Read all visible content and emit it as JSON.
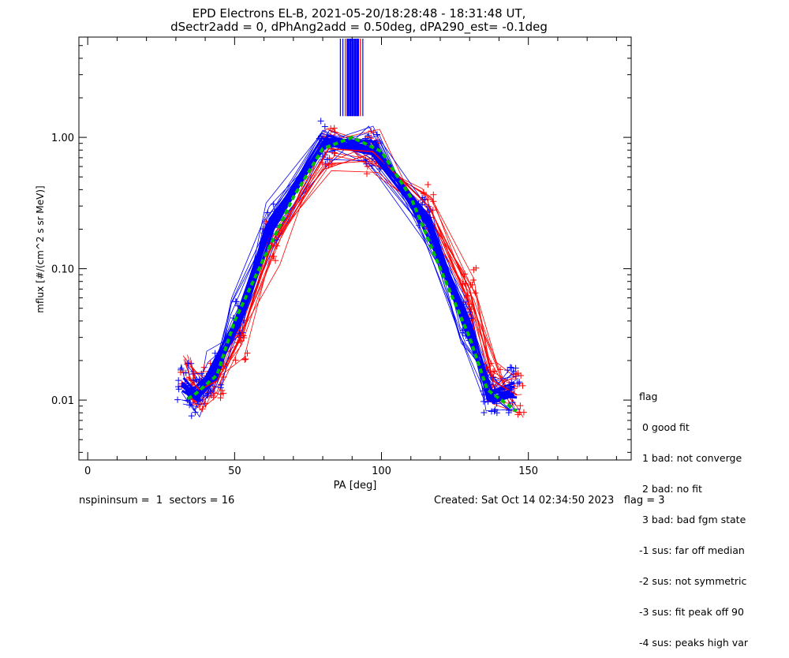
{
  "chart_data": {
    "type": "line",
    "title": "EPD Electrons EL-B, 2021-05-20/18:28:48 - 18:31:48 UT,",
    "subtitle": "dSectr2add = 0, dPhAng2add = 0.50deg, dPA290_est=  -0.1deg",
    "xlabel": "PA [deg]",
    "ylabel": "mflux [#/(cm^2 s sr MeV)]",
    "xlim": [
      -3,
      185
    ],
    "ylim": [
      0.0035,
      5.8
    ],
    "y_scale": "log",
    "x_ticks": [
      0,
      50,
      100,
      150
    ],
    "x_tick_labels": [
      "0",
      "50",
      "100",
      "150"
    ],
    "y_ticks": [
      0.01,
      0.1,
      1.0
    ],
    "y_tick_labels": [
      "0.01",
      "0.10",
      "1.00"
    ],
    "grid": false,
    "series": [
      {
        "color": "#ff0000",
        "x": [
          34,
          38,
          44,
          52,
          63,
          82,
          97,
          116,
          130,
          138,
          146
        ],
        "y": [
          0.015,
          0.012,
          0.014,
          0.03,
          0.16,
          0.82,
          0.78,
          0.3,
          0.07,
          0.014,
          0.011
        ]
      },
      {
        "color": "#0000ff",
        "x": [
          33,
          37,
          43,
          51,
          62,
          81,
          97,
          115,
          129,
          137,
          145
        ],
        "y": [
          0.013,
          0.011,
          0.016,
          0.04,
          0.22,
          0.9,
          0.85,
          0.24,
          0.04,
          0.011,
          0.012
        ]
      },
      {
        "color": "#00c000",
        "x": [
          34,
          36,
          44,
          50,
          60,
          70,
          80,
          90,
          100,
          110,
          120,
          130,
          136,
          146
        ],
        "y": [
          0.0103,
          0.0108,
          0.0155,
          0.04,
          0.12,
          0.35,
          0.82,
          1.0,
          0.78,
          0.35,
          0.1,
          0.03,
          0.012,
          0.0082
        ]
      }
    ]
  },
  "legend": {
    "title": "flag",
    "items": [
      " 0 good fit",
      " 1 bad: not converge",
      " 2 bad: no fit",
      " 3 bad: bad fgm state",
      "-1 sus: far off median",
      "-2 sus: not symmetric",
      "-3 sus: fit peak off 90",
      "-4 sus: peaks high var"
    ]
  },
  "footer": {
    "left": "nspininsum =  1  sectors = 16",
    "right": "Created: Sat Oct 14 02:34:50 2023   flag = 3"
  },
  "colors": {
    "red": "#ff0000",
    "blue": "#0000ff",
    "green": "#00c000"
  }
}
